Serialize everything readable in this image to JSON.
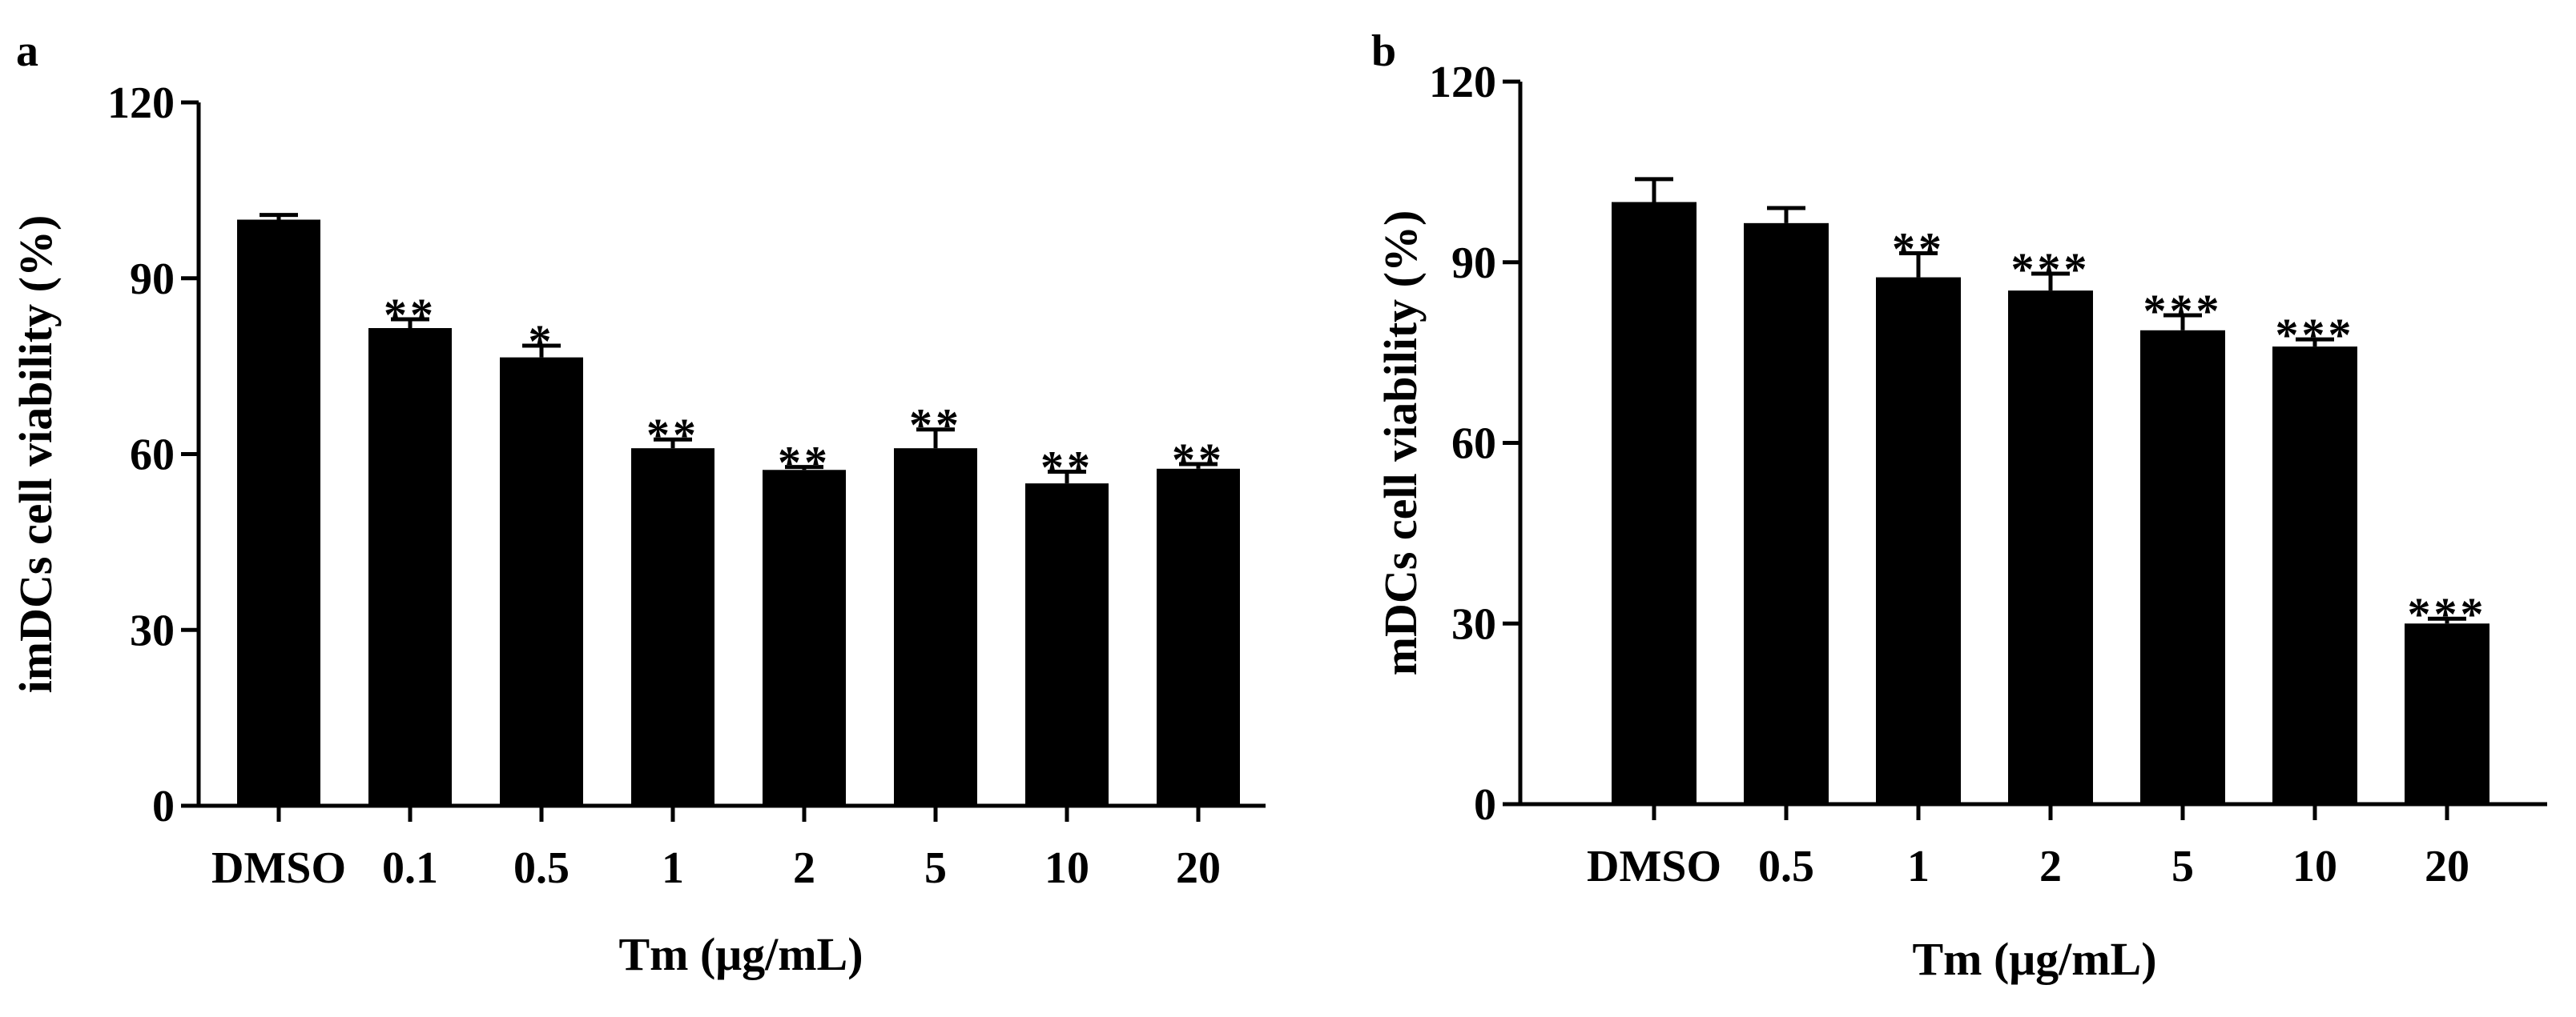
{
  "chart_data": [
    {
      "panel_label": "a",
      "type": "bar",
      "categories": [
        "DMSO",
        "0.1",
        "0.5",
        "1",
        "2",
        "5",
        "10",
        "20"
      ],
      "values": [
        100,
        81.5,
        76.5,
        61,
        57.3,
        61,
        55,
        57.5
      ],
      "errors": [
        0.8,
        1.5,
        2.0,
        1.5,
        0.5,
        3.2,
        2.0,
        0.8
      ],
      "significance": [
        "",
        "**",
        "*",
        "**",
        "**",
        "**",
        "**",
        "**"
      ],
      "xlabel": "Tm (μg/mL)",
      "ylabel": "imDCs cell viability (%)",
      "ylim": [
        0,
        120
      ],
      "yticks": [
        0,
        30,
        60,
        90,
        120
      ],
      "bar_color": "#000000",
      "grid": false,
      "legend": "none"
    },
    {
      "panel_label": "b",
      "type": "bar",
      "categories": [
        "DMSO",
        "0.5",
        "1",
        "2",
        "5",
        "10",
        "20"
      ],
      "values": [
        100,
        96.5,
        87.5,
        85.3,
        78.7,
        76,
        30
      ],
      "errors": [
        3.8,
        2.5,
        4.0,
        2.8,
        2.5,
        1.2,
        0.8
      ],
      "significance": [
        "",
        "",
        "**",
        "***",
        "***",
        "***",
        "***"
      ],
      "xlabel": "Tm (μg/mL)",
      "ylabel": "mDCs cell viability (%)",
      "ylim": [
        0,
        120
      ],
      "yticks": [
        0,
        30,
        60,
        90,
        120
      ],
      "bar_color": "#000000",
      "grid": false,
      "legend": "none"
    }
  ]
}
